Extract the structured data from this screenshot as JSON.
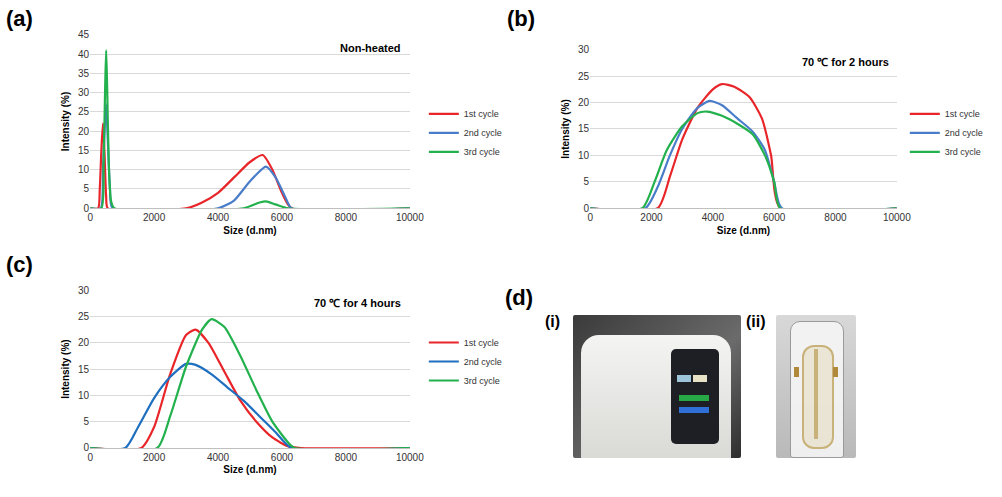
{
  "chart_data": [
    {
      "type": "line",
      "panel": "(a)",
      "annotation": "Non-heated",
      "xlabel": "Size (d.nm)",
      "ylabel": "Intensity (%)",
      "xlim": [
        0,
        10000
      ],
      "xticks": [
        0,
        2000,
        4000,
        6000,
        8000,
        10000
      ],
      "ylim": [
        0,
        45
      ],
      "yticks": [
        0,
        5,
        10,
        15,
        20,
        25,
        30,
        35,
        40,
        45
      ],
      "grid": true,
      "legend": "right",
      "series": [
        {
          "name": "1st cycle",
          "color": "#e8262a",
          "x": [
            0,
            250,
            300,
            350,
            400,
            450,
            500,
            550,
            3000,
            3500,
            4000,
            4500,
            5000,
            5400,
            5700,
            6000,
            6300,
            10000
          ],
          "values": [
            0,
            0,
            5,
            15,
            22,
            14,
            3,
            0,
            0,
            1.5,
            4,
            8,
            12,
            13.8,
            10,
            4,
            0,
            0
          ]
        },
        {
          "name": "2nd cycle",
          "color": "#4a7dc9",
          "x": [
            0,
            330,
            400,
            450,
            500,
            550,
            620,
            700,
            4000,
            4500,
            5000,
            5500,
            5800,
            6100,
            6300,
            10000
          ],
          "values": [
            0,
            0,
            10,
            20,
            27,
            18,
            5,
            0,
            0,
            2,
            7,
            10.8,
            8,
            3,
            0,
            0
          ]
        },
        {
          "name": "3rd cycle",
          "color": "#22b14c",
          "x": [
            0,
            350,
            420,
            470,
            500,
            530,
            580,
            650,
            750,
            4800,
            5300,
            5500,
            5800,
            6200,
            10000
          ],
          "values": [
            0,
            0,
            12,
            32,
            41,
            32,
            12,
            2,
            0,
            0,
            1.5,
            1.8,
            1,
            0,
            0
          ]
        }
      ]
    },
    {
      "type": "line",
      "panel": "(b)",
      "annotation": "70 ℃ for 2 hours",
      "xlabel": "Size (d.nm)",
      "ylabel": "Intensity (%)",
      "xlim": [
        0,
        10000
      ],
      "xticks": [
        0,
        2000,
        4000,
        6000,
        8000,
        10000
      ],
      "ylim": [
        0,
        30
      ],
      "yticks": [
        0,
        5,
        10,
        15,
        20,
        25,
        30
      ],
      "grid": true,
      "legend": "right",
      "series": [
        {
          "name": "1st cycle",
          "color": "#e8262a",
          "x": [
            0,
            2200,
            2600,
            3000,
            3500,
            4000,
            4300,
            4700,
            5200,
            5600,
            5900,
            6200,
            10000
          ],
          "values": [
            0,
            0,
            6,
            13,
            19,
            22.5,
            23.5,
            23,
            21,
            17,
            10,
            0,
            0
          ]
        },
        {
          "name": "2nd cycle",
          "color": "#4a7dc9",
          "x": [
            0,
            1800,
            2200,
            2600,
            3000,
            3500,
            3900,
            4300,
            4800,
            5300,
            5700,
            6000,
            6250,
            10000
          ],
          "values": [
            0,
            0,
            4,
            10,
            15,
            19,
            20.3,
            19.5,
            17,
            14.5,
            11,
            5,
            0,
            0
          ]
        },
        {
          "name": "3rd cycle",
          "color": "#22b14c",
          "x": [
            0,
            1700,
            2100,
            2500,
            3000,
            3500,
            3800,
            4300,
            4800,
            5300,
            5700,
            6000,
            6200,
            10000
          ],
          "values": [
            0,
            0,
            5,
            11,
            15.5,
            18,
            18.3,
            17.5,
            16,
            14,
            10,
            5,
            0,
            0
          ]
        }
      ]
    },
    {
      "type": "line",
      "panel": "(c)",
      "annotation": "70 ℃ for 4 hours",
      "xlabel": "Size (d.nm)",
      "ylabel": "Intensity (%)",
      "xlim": [
        0,
        10000
      ],
      "xticks": [
        0,
        2000,
        4000,
        6000,
        8000,
        10000
      ],
      "ylim": [
        0,
        30
      ],
      "yticks": [
        0,
        5,
        10,
        15,
        20,
        25,
        30
      ],
      "grid": true,
      "legend": "right",
      "series": [
        {
          "name": "1st cycle",
          "color": "#e8262a",
          "x": [
            0,
            1600,
            2000,
            2500,
            3000,
            3300,
            3700,
            4200,
            4700,
            5200,
            5700,
            6200,
            6600,
            10000
          ],
          "values": [
            0,
            0,
            4,
            14,
            21.5,
            22.5,
            20,
            14.5,
            9,
            5,
            2,
            0.3,
            0,
            0
          ]
        },
        {
          "name": "2nd cycle",
          "color": "#1f6fc0",
          "x": [
            0,
            1100,
            1500,
            2000,
            2500,
            3000,
            3300,
            3800,
            4300,
            4800,
            5300,
            5800,
            6300,
            10000
          ],
          "values": [
            0,
            0,
            4,
            9.5,
            13.5,
            16,
            15.8,
            14,
            11.5,
            9,
            6,
            3,
            0,
            0
          ]
        },
        {
          "name": "3rd cycle",
          "color": "#22b14c",
          "x": [
            0,
            2100,
            2500,
            3000,
            3500,
            3800,
            4200,
            4700,
            5200,
            5700,
            6200,
            6400,
            10000
          ],
          "values": [
            0,
            0,
            6,
            15.5,
            22.5,
            24.5,
            23,
            17.5,
            11,
            5,
            1,
            0,
            0
          ]
        }
      ]
    }
  ],
  "photo_panel": {
    "panel": "(d)",
    "photos": [
      {
        "label": "(i)"
      },
      {
        "label": "(ii)"
      }
    ]
  }
}
